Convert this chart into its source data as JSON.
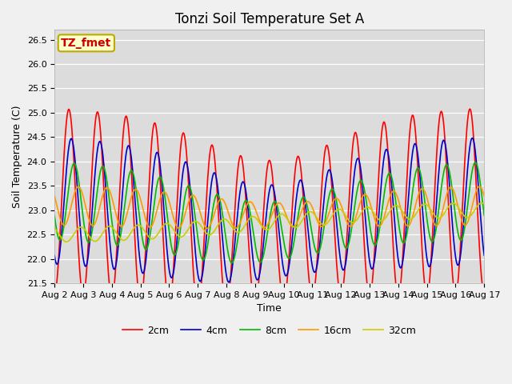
{
  "title": "Tonzi Soil Temperature Set A",
  "xlabel": "Time",
  "ylabel": "Soil Temperature (C)",
  "ylim": [
    21.5,
    26.7
  ],
  "xlim": [
    0,
    360
  ],
  "colors": {
    "2cm": "#ff0000",
    "4cm": "#0000cc",
    "8cm": "#00bb00",
    "16cm": "#ff9900",
    "32cm": "#cccc00"
  },
  "legend_labels": [
    "2cm",
    "4cm",
    "8cm",
    "16cm",
    "32cm"
  ],
  "annotation_text": "TZ_fmet",
  "annotation_bg": "#ffffcc",
  "annotation_border": "#ccaa00",
  "fig_bg": "#f0f0f0",
  "plot_bg": "#dcdcdc",
  "xtick_labels": [
    "Aug 2",
    "Aug 3",
    "Aug 4",
    "Aug 5",
    "Aug 6",
    "Aug 7",
    "Aug 8",
    "Aug 9",
    "Aug 10",
    "Aug 11",
    "Aug 12",
    "Aug 13",
    "Aug 14",
    "Aug 15",
    "Aug 16",
    "Aug 17"
  ],
  "n_points": 720,
  "period": 48,
  "title_fontsize": 12,
  "axis_label_fontsize": 9,
  "tick_fontsize": 8,
  "legend_fontsize": 9,
  "linewidth": 1.2
}
